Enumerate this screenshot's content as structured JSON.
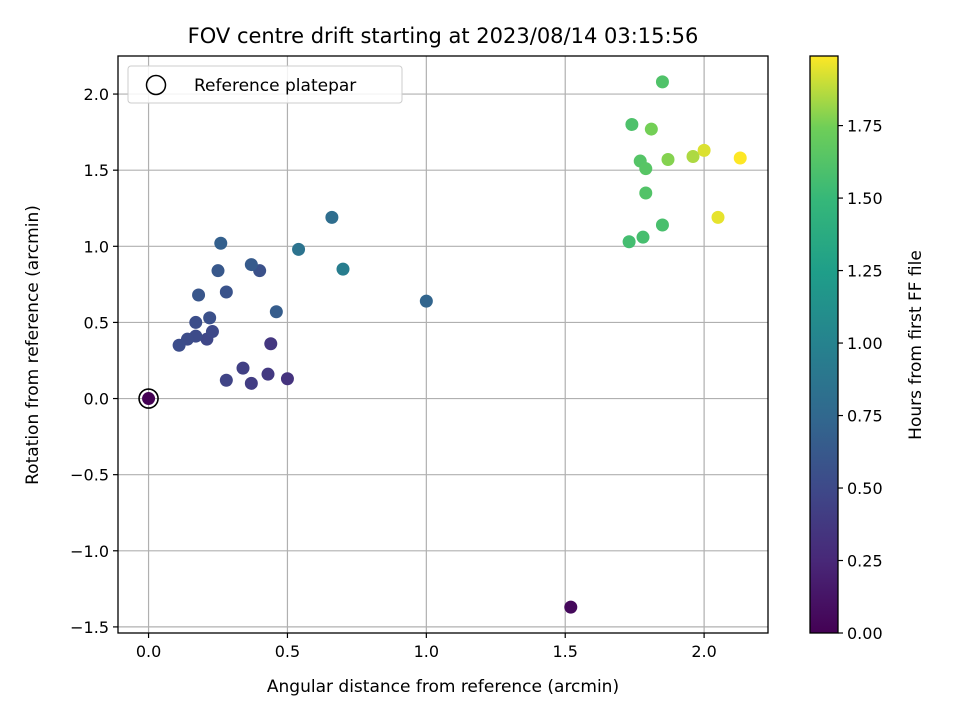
{
  "chart_data": {
    "type": "scatter",
    "title": "FOV centre drift starting at 2023/08/14 03:15:56",
    "xlabel": "Angular distance from reference (arcmin)",
    "ylabel": "Rotation from reference (arcmin)",
    "xlim": [
      -0.11,
      2.23
    ],
    "ylim": [
      -1.54,
      2.25
    ],
    "x_ticks": [
      0.0,
      0.5,
      1.0,
      1.5,
      2.0
    ],
    "x_tick_labels": [
      "0.0",
      "0.5",
      "1.0",
      "1.5",
      "2.0"
    ],
    "y_ticks": [
      -1.5,
      -1.0,
      -0.5,
      0.0,
      0.5,
      1.0,
      1.5,
      2.0
    ],
    "y_tick_labels": [
      "−1.5",
      "−1.0",
      "−0.5",
      "0.0",
      "0.5",
      "1.0",
      "1.5",
      "2.0"
    ],
    "grid": true,
    "colormap": "viridis",
    "colorbar": {
      "label": "Hours from first FF file",
      "range": [
        0,
        1.99
      ],
      "ticks": [
        0.0,
        0.25,
        0.5,
        0.75,
        1.0,
        1.25,
        1.5,
        1.75
      ],
      "tick_labels": [
        "0.00",
        "0.25",
        "0.50",
        "0.75",
        "1.00",
        "1.25",
        "1.50",
        "1.75"
      ]
    },
    "legend": {
      "label": "Reference platepar",
      "location": "upper-left",
      "marker": "open-circle"
    },
    "reference_point": {
      "x": 0.0,
      "y": 0.0
    },
    "points": [
      {
        "x": 0.0,
        "y": 0.0,
        "hours": 0.0
      },
      {
        "x": 1.52,
        "y": -1.37,
        "hours": 0.05
      },
      {
        "x": 0.5,
        "y": 0.13,
        "hours": 0.33
      },
      {
        "x": 0.44,
        "y": 0.36,
        "hours": 0.36
      },
      {
        "x": 0.43,
        "y": 0.16,
        "hours": 0.38
      },
      {
        "x": 0.37,
        "y": 0.1,
        "hours": 0.41
      },
      {
        "x": 0.34,
        "y": 0.2,
        "hours": 0.43
      },
      {
        "x": 0.28,
        "y": 0.12,
        "hours": 0.46
      },
      {
        "x": 0.21,
        "y": 0.39,
        "hours": 0.48
      },
      {
        "x": 0.23,
        "y": 0.44,
        "hours": 0.5
      },
      {
        "x": 0.17,
        "y": 0.41,
        "hours": 0.51
      },
      {
        "x": 0.14,
        "y": 0.39,
        "hours": 0.52
      },
      {
        "x": 0.11,
        "y": 0.35,
        "hours": 0.53
      },
      {
        "x": 0.17,
        "y": 0.5,
        "hours": 0.54
      },
      {
        "x": 0.22,
        "y": 0.53,
        "hours": 0.55
      },
      {
        "x": 0.4,
        "y": 0.84,
        "hours": 0.56
      },
      {
        "x": 0.28,
        "y": 0.7,
        "hours": 0.58
      },
      {
        "x": 0.18,
        "y": 0.68,
        "hours": 0.6
      },
      {
        "x": 0.25,
        "y": 0.84,
        "hours": 0.62
      },
      {
        "x": 0.37,
        "y": 0.88,
        "hours": 0.64
      },
      {
        "x": 0.46,
        "y": 0.57,
        "hours": 0.66
      },
      {
        "x": 0.26,
        "y": 1.02,
        "hours": 0.68
      },
      {
        "x": 1.0,
        "y": 0.64,
        "hours": 0.72
      },
      {
        "x": 0.66,
        "y": 1.19,
        "hours": 0.8
      },
      {
        "x": 0.54,
        "y": 0.98,
        "hours": 0.85
      },
      {
        "x": 0.7,
        "y": 0.85,
        "hours": 0.95
      },
      {
        "x": 1.73,
        "y": 1.03,
        "hours": 1.56
      },
      {
        "x": 1.78,
        "y": 1.06,
        "hours": 1.57
      },
      {
        "x": 1.85,
        "y": 1.14,
        "hours": 1.58
      },
      {
        "x": 1.74,
        "y": 1.8,
        "hours": 1.6
      },
      {
        "x": 1.85,
        "y": 2.08,
        "hours": 1.61
      },
      {
        "x": 1.79,
        "y": 1.35,
        "hours": 1.62
      },
      {
        "x": 1.77,
        "y": 1.56,
        "hours": 1.63
      },
      {
        "x": 1.79,
        "y": 1.51,
        "hours": 1.64
      },
      {
        "x": 1.81,
        "y": 1.77,
        "hours": 1.75
      },
      {
        "x": 1.87,
        "y": 1.57,
        "hours": 1.78
      },
      {
        "x": 1.96,
        "y": 1.59,
        "hours": 1.85
      },
      {
        "x": 2.0,
        "y": 1.63,
        "hours": 1.93
      },
      {
        "x": 2.05,
        "y": 1.19,
        "hours": 1.95
      },
      {
        "x": 2.13,
        "y": 1.58,
        "hours": 1.99
      }
    ]
  }
}
